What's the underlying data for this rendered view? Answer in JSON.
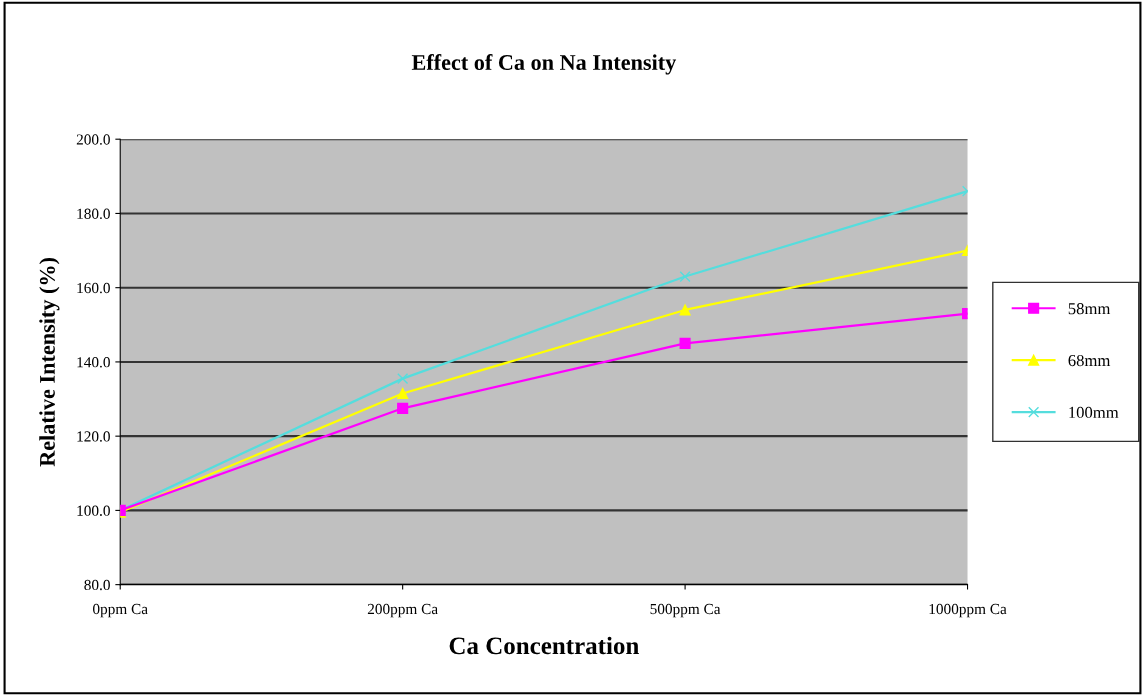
{
  "chart_data": {
    "type": "line",
    "title": "Effect of Ca on Na Intensity",
    "xlabel": "Ca Concentration",
    "ylabel": "Relative Intensity (%)",
    "categories": [
      "0ppm Ca",
      "200ppm Ca",
      "500ppm Ca",
      "1000ppm Ca"
    ],
    "series": [
      {
        "name": "58mm",
        "color": "#ff00ff",
        "marker": "square",
        "values": [
          100.0,
          127.5,
          145.0,
          153.0
        ]
      },
      {
        "name": "68mm",
        "color": "#ffff00",
        "marker": "triangle",
        "values": [
          99.5,
          131.5,
          154.0,
          170.0
        ]
      },
      {
        "name": "100mm",
        "color": "#55dddd",
        "marker": "cross",
        "values": [
          100.0,
          135.5,
          163.0,
          186.0
        ]
      }
    ],
    "ylim": [
      80,
      200
    ],
    "yticks": [
      {
        "value": 80,
        "label": "80.0"
      },
      {
        "value": 100,
        "label": "100.0"
      },
      {
        "value": 120,
        "label": "120.0"
      },
      {
        "value": 140,
        "label": "140.0"
      },
      {
        "value": 160,
        "label": "160.0"
      },
      {
        "value": 180,
        "label": "180.0"
      },
      {
        "value": 200,
        "label": "200.0"
      }
    ],
    "grid": "y",
    "legend": "right",
    "line_style": "solid"
  }
}
